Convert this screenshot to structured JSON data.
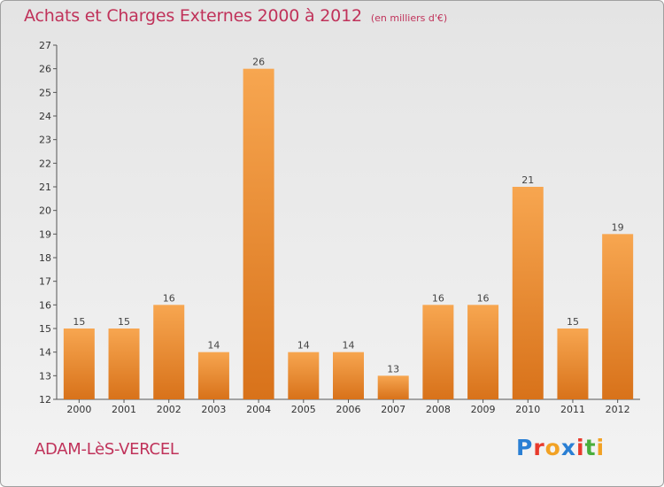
{
  "header": {
    "title": "Achats et Charges Externes 2000 à 2012",
    "unit": "(en milliers d'€)"
  },
  "footer": {
    "commune": "ADAM-LèS-VERCEL",
    "logo_text": "Proxiti",
    "logo_colors": [
      "#2a7fd4",
      "#e83a2c",
      "#f2a224",
      "#2a7fd4",
      "#e83a2c",
      "#4aae3c",
      "#f2a224"
    ]
  },
  "colors": {
    "bar_top": "#f7a650",
    "bar_bottom": "#d8721a",
    "axis": "#555555",
    "title": "#c0325a"
  },
  "chart_data": {
    "type": "bar",
    "title": "Achats et Charges Externes 2000 à 2012",
    "subtitle": "(en milliers d'€)",
    "xlabel": "",
    "ylabel": "",
    "categories": [
      "2000",
      "2001",
      "2002",
      "2003",
      "2004",
      "2005",
      "2006",
      "2007",
      "2008",
      "2009",
      "2010",
      "2011",
      "2012"
    ],
    "values": [
      15,
      15,
      16,
      14,
      26,
      14,
      14,
      13,
      16,
      16,
      21,
      15,
      19
    ],
    "ylim": [
      12,
      27
    ],
    "yticks": [
      12,
      13,
      14,
      15,
      16,
      17,
      18,
      19,
      20,
      21,
      22,
      23,
      24,
      25,
      26,
      27
    ],
    "grid": false,
    "legend": "none",
    "data_labels": true
  }
}
